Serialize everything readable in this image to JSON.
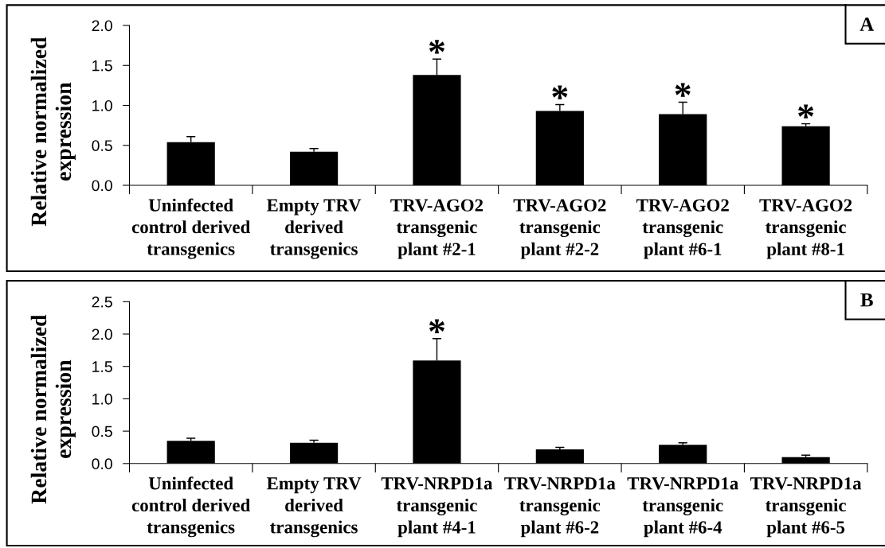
{
  "chart_data": [
    {
      "type": "bar",
      "ylabel": "Relative normalized\nexpression",
      "categories": [
        "Uninfected\ncontrol derived\ntransgenics",
        "Empty TRV\nderived\ntransgenics",
        "TRV-AGO2\ntransgenic\nplant #2-1",
        "TRV-AGO2\ntransgenic\nplant #2-2",
        "TRV-AGO2\ntransgenic\nplant #6-1",
        "TRV-AGO2\ntransgenic\nplant #8-1"
      ],
      "values": [
        0.54,
        0.42,
        1.38,
        0.93,
        0.89,
        0.74
      ],
      "color": "#000000",
      "errors": [
        [
          0.54,
          0.61
        ],
        [
          0.42,
          0.46
        ],
        [
          1.38,
          1.58
        ],
        [
          0.93,
          1.01
        ],
        [
          0.89,
          1.04
        ],
        [
          0.74,
          0.77
        ]
      ],
      "ylim": [
        0,
        2
      ],
      "yticks": [
        {
          "value": 0,
          "label": "0.0"
        },
        0.5,
        {
          "value": 1,
          "label": "1.0"
        },
        1.5,
        {
          "value": 2,
          "label": "2.0"
        }
      ],
      "annotations": [
        {
          "text": "*",
          "x": "TRV-AGO2\ntransgenic\nplant #2-1",
          "y": 1.58
        },
        {
          "text": "*",
          "x": "TRV-AGO2\ntransgenic\nplant #2-2",
          "y": 1.01
        },
        {
          "text": "*",
          "x": "TRV-AGO2\ntransgenic\nplant #6-1",
          "y": 1.04
        },
        {
          "text": "*",
          "x": "TRV-AGO2\ntransgenic\nplant #8-1",
          "y": 0.77
        },
        "A"
      ]
    },
    {
      "type": "bar",
      "ylabel": "Relative normalized\nexpression",
      "categories": [
        "Uninfected\ncontrol derived\ntransgenics",
        "Empty TRV\nderived\ntransgenics",
        "TRV-NRPD1a\ntransgenic\nplant #4-1",
        "TRV-NRPD1a\ntransgenic\nplant #6-2",
        "TRV-NRPD1a\ntransgenic\nplant #6-4",
        "TRV-NRPD1a\ntransgenic\nplant #6-5"
      ],
      "values": [
        0.35,
        0.32,
        1.59,
        0.22,
        0.29,
        0.1
      ],
      "color": "#000000",
      "errors": [
        [
          0.35,
          0.39
        ],
        [
          0.32,
          0.36
        ],
        [
          1.59,
          1.93
        ],
        [
          0.22,
          0.25
        ],
        [
          0.29,
          0.32
        ],
        [
          0.1,
          0.13
        ]
      ],
      "ylim": [
        0,
        2.5
      ],
      "yticks": [
        {
          "value": 0,
          "label": "0.0"
        },
        0.5,
        {
          "value": 1,
          "label": "1.0"
        },
        1.5,
        {
          "value": 2,
          "label": "2.0"
        },
        2.5
      ],
      "annotations": [
        {
          "text": "*",
          "x": "TRV-NRPD1a\ntransgenic\nplant #4-1",
          "y": 1.93
        },
        "B"
      ]
    }
  ]
}
